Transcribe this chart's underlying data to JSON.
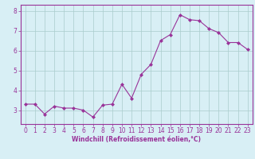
{
  "x": [
    0,
    1,
    2,
    3,
    4,
    5,
    6,
    7,
    8,
    9,
    10,
    11,
    12,
    13,
    14,
    15,
    16,
    17,
    18,
    19,
    20,
    21,
    22,
    23
  ],
  "y": [
    3.3,
    3.3,
    2.8,
    3.2,
    3.1,
    3.1,
    3.0,
    2.65,
    3.25,
    3.3,
    4.3,
    3.6,
    4.8,
    5.3,
    6.5,
    6.8,
    7.8,
    7.55,
    7.5,
    7.1,
    6.9,
    6.4,
    6.4,
    6.05
  ],
  "line_color": "#993399",
  "marker": "D",
  "marker_size": 2,
  "bg_color": "#d8eff5",
  "grid_color": "#aacccc",
  "xlabel": "Windchill (Refroidissement éolien,°C)",
  "xlabel_color": "#993399",
  "tick_color": "#993399",
  "spine_color": "#993399",
  "ylim": [
    2.3,
    8.3
  ],
  "xlim": [
    -0.5,
    23.5
  ],
  "yticks": [
    3,
    4,
    5,
    6,
    7,
    8
  ],
  "xticks": [
    0,
    1,
    2,
    3,
    4,
    5,
    6,
    7,
    8,
    9,
    10,
    11,
    12,
    13,
    14,
    15,
    16,
    17,
    18,
    19,
    20,
    21,
    22,
    23
  ],
  "tick_fontsize": 5.5,
  "xlabel_fontsize": 5.5,
  "linewidth": 0.8
}
